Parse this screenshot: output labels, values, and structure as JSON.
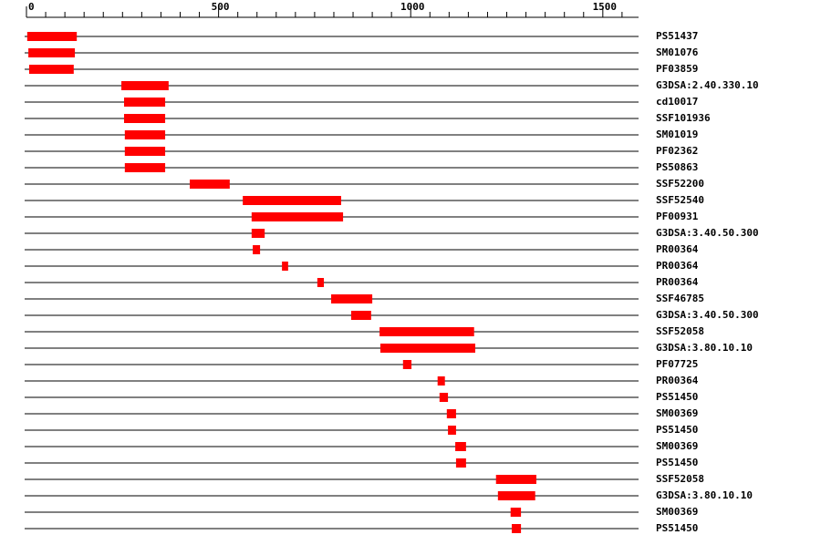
{
  "chart_data": {
    "type": "range",
    "categories": [
      "PS51437",
      "SM01076",
      "PF03859",
      "G3DSA:2.40.330.10",
      "cd10017",
      "SSF101936",
      "SM01019",
      "PF02362",
      "PS50863",
      "SSF52200",
      "SSF52540",
      "PF00931",
      "G3DSA:3.40.50.300",
      "PR00364",
      "PR00364",
      "PR00364",
      "SSF46785",
      "G3DSA:3.40.50.300",
      "SSF52058",
      "G3DSA:3.80.10.10",
      "PF07725",
      "PR00364",
      "PS51450",
      "SM00369",
      "PS51450",
      "SM00369",
      "PS51450",
      "SSF52058",
      "G3DSA:3.80.10.10",
      "SM00369",
      "PS51450"
    ],
    "starts": [
      2,
      5,
      7,
      247,
      254,
      254,
      256,
      256,
      256,
      425,
      563,
      586,
      586,
      589,
      665,
      757,
      793,
      845,
      919,
      921,
      980,
      1070,
      1075,
      1094,
      1097,
      1116,
      1118,
      1222,
      1227,
      1260,
      1263
    ],
    "ends": [
      131,
      126,
      123,
      370,
      361,
      361,
      361,
      361,
      361,
      529,
      819,
      824,
      620,
      608,
      681,
      774,
      900,
      897,
      1165,
      1168,
      1002,
      1089,
      1097,
      1118,
      1118,
      1144,
      1144,
      1327,
      1324,
      1287,
      1287
    ],
    "color": "#ff0000",
    "xlim": [
      0,
      1593
    ],
    "xticks": [
      0,
      500,
      1000,
      1500
    ],
    "xminor_ticks": [
      50,
      100,
      150,
      200,
      250,
      300,
      350,
      400,
      450,
      550,
      600,
      650,
      700,
      750,
      800,
      850,
      900,
      950,
      1050,
      1100,
      1150,
      1200,
      1250,
      1300,
      1350,
      1400,
      1450,
      1550
    ]
  }
}
